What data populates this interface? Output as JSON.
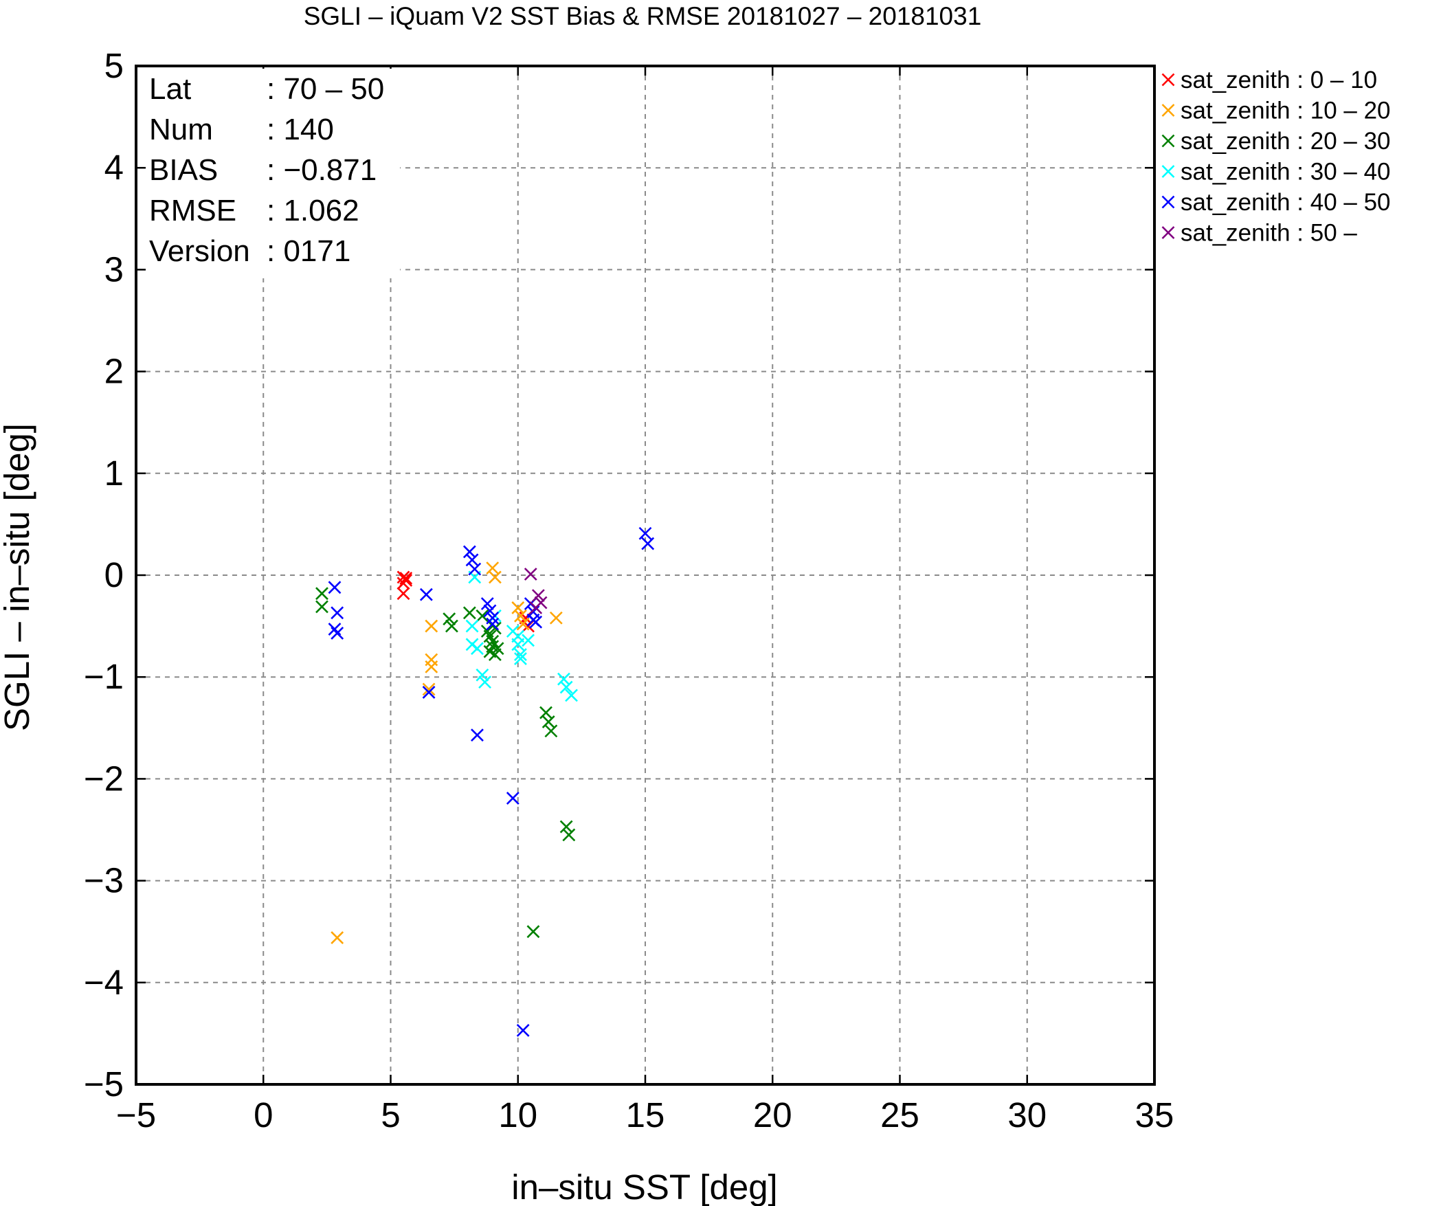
{
  "chart_data": {
    "type": "scatter",
    "title": "SGLI – iQuam V2 SST Bias & RMSE 20181027 – 20181031",
    "xlabel": "in–situ SST [deg]",
    "ylabel": "SGLI – in–situ [deg]",
    "xlim": [
      -5,
      35
    ],
    "ylim": [
      -5,
      5
    ],
    "x_ticks": [
      -5,
      0,
      5,
      10,
      15,
      20,
      25,
      30,
      35
    ],
    "y_ticks": [
      -5,
      -4,
      -3,
      -2,
      -1,
      0,
      1,
      2,
      3,
      4,
      5
    ],
    "x_tick_labels": [
      "−5",
      "0",
      "5",
      "10",
      "15",
      "20",
      "25",
      "30",
      "35"
    ],
    "y_tick_labels": [
      "−5",
      "−4",
      "−3",
      "−2",
      "−1",
      "0",
      "1",
      "2",
      "3",
      "4",
      "5"
    ],
    "grid": true,
    "legend_position": "outside-right-top",
    "stats": [
      {
        "label": "Lat",
        "value": ": 70 – 50"
      },
      {
        "label": "Num",
        "value": ": 140"
      },
      {
        "label": "BIAS",
        "value": ": −0.871"
      },
      {
        "label": "RMSE",
        "value": ": 1.062"
      },
      {
        "label": "Version",
        "value": ": 0171"
      }
    ],
    "series": [
      {
        "name": "sat_zenith :  0 – 10",
        "color": "#ff0000",
        "points": [
          [
            5.5,
            -0.02
          ],
          [
            5.6,
            -0.05
          ],
          [
            5.5,
            -0.08
          ],
          [
            5.6,
            -0.03
          ],
          [
            5.5,
            -0.18
          ],
          [
            10.3,
            -0.42
          ],
          [
            10.4,
            -0.5
          ]
        ]
      },
      {
        "name": "sat_zenith : 10 – 20",
        "color": "#ffa500",
        "points": [
          [
            9.0,
            0.07
          ],
          [
            9.1,
            -0.02
          ],
          [
            10.0,
            -0.32
          ],
          [
            10.1,
            -0.4
          ],
          [
            11.5,
            -0.42
          ],
          [
            6.6,
            -0.5
          ],
          [
            6.6,
            -0.83
          ],
          [
            6.6,
            -0.9
          ],
          [
            6.5,
            -1.12
          ],
          [
            2.9,
            -3.56
          ],
          [
            10.2,
            -0.48
          ]
        ]
      },
      {
        "name": "sat_zenith : 20 – 30",
        "color": "#008000",
        "points": [
          [
            2.3,
            -0.18
          ],
          [
            2.3,
            -0.31
          ],
          [
            7.3,
            -0.43
          ],
          [
            7.4,
            -0.5
          ],
          [
            8.1,
            -0.37
          ],
          [
            8.6,
            -0.4
          ],
          [
            8.8,
            -0.55
          ],
          [
            8.9,
            -0.6
          ],
          [
            9.0,
            -0.65
          ],
          [
            9.0,
            -0.7
          ],
          [
            8.9,
            -0.75
          ],
          [
            9.1,
            -0.78
          ],
          [
            9.2,
            -0.72
          ],
          [
            9.1,
            -0.52
          ],
          [
            11.1,
            -1.35
          ],
          [
            11.2,
            -1.44
          ],
          [
            11.3,
            -1.53
          ],
          [
            11.9,
            -2.47
          ],
          [
            12.0,
            -2.55
          ],
          [
            10.6,
            -3.5
          ]
        ]
      },
      {
        "name": "sat_zenith : 30 – 40",
        "color": "#00ffff",
        "points": [
          [
            8.2,
            -0.5
          ],
          [
            8.3,
            -0.02
          ],
          [
            8.2,
            -0.68
          ],
          [
            8.4,
            -0.72
          ],
          [
            8.6,
            -0.98
          ],
          [
            8.7,
            -1.05
          ],
          [
            9.1,
            -0.4
          ],
          [
            9.8,
            -0.55
          ],
          [
            10.0,
            -0.68
          ],
          [
            10.1,
            -0.78
          ],
          [
            10.1,
            -0.82
          ],
          [
            10.4,
            -0.64
          ],
          [
            11.8,
            -1.02
          ],
          [
            11.9,
            -1.1
          ],
          [
            12.1,
            -1.18
          ],
          [
            10.0,
            -0.6
          ]
        ]
      },
      {
        "name": "sat_zenith : 40 – 50",
        "color": "#0000ff",
        "points": [
          [
            2.8,
            -0.12
          ],
          [
            2.9,
            -0.37
          ],
          [
            2.8,
            -0.53
          ],
          [
            2.9,
            -0.57
          ],
          [
            6.4,
            -0.19
          ],
          [
            6.5,
            -1.15
          ],
          [
            8.1,
            0.23
          ],
          [
            8.2,
            0.15
          ],
          [
            8.3,
            0.06
          ],
          [
            8.4,
            -1.57
          ],
          [
            8.8,
            -0.28
          ],
          [
            8.9,
            -0.35
          ],
          [
            9.0,
            -0.42
          ],
          [
            9.0,
            -0.48
          ],
          [
            9.8,
            -2.19
          ],
          [
            10.2,
            -4.47
          ],
          [
            10.5,
            -0.28
          ],
          [
            10.6,
            -0.36
          ],
          [
            10.6,
            -0.44
          ],
          [
            10.7,
            -0.46
          ],
          [
            15.0,
            0.41
          ],
          [
            15.1,
            0.31
          ]
        ]
      },
      {
        "name": "sat_zenith : 50 –",
        "color": "#800080",
        "points": [
          [
            10.5,
            0.01
          ],
          [
            10.8,
            -0.2
          ],
          [
            10.9,
            -0.27
          ],
          [
            10.7,
            -0.32
          ]
        ]
      }
    ]
  }
}
